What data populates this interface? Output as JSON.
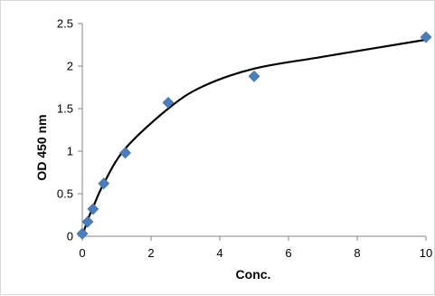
{
  "chart_data": {
    "type": "scatter",
    "title": "",
    "xlabel": "Conc.",
    "ylabel": "OD 450 nm",
    "xlim": [
      0,
      10
    ],
    "ylim": [
      0,
      2.5
    ],
    "x_ticks": [
      "0",
      "2",
      "4",
      "6",
      "8",
      "10"
    ],
    "y_ticks": [
      "0",
      "0.5",
      "1",
      "1.5",
      "2",
      "2.5"
    ],
    "grid": false,
    "legend": "none",
    "marker": "diamond",
    "marker_color": "#4a7ebb",
    "trendline_color": "#000000",
    "series": [
      {
        "x": [
          0,
          0.156,
          0.3125,
          0.625,
          1.25,
          2.5,
          5,
          10
        ],
        "y": [
          0.03,
          0.17,
          0.32,
          0.62,
          0.98,
          1.57,
          1.88,
          2.34
        ]
      }
    ],
    "trendline": {
      "x": [
        0,
        0.156,
        0.3125,
        0.625,
        1.25,
        2.5,
        3.5,
        5,
        7,
        10
      ],
      "y": [
        0.0,
        0.19,
        0.34,
        0.62,
        1.03,
        1.5,
        1.76,
        1.97,
        2.11,
        2.31
      ]
    }
  }
}
